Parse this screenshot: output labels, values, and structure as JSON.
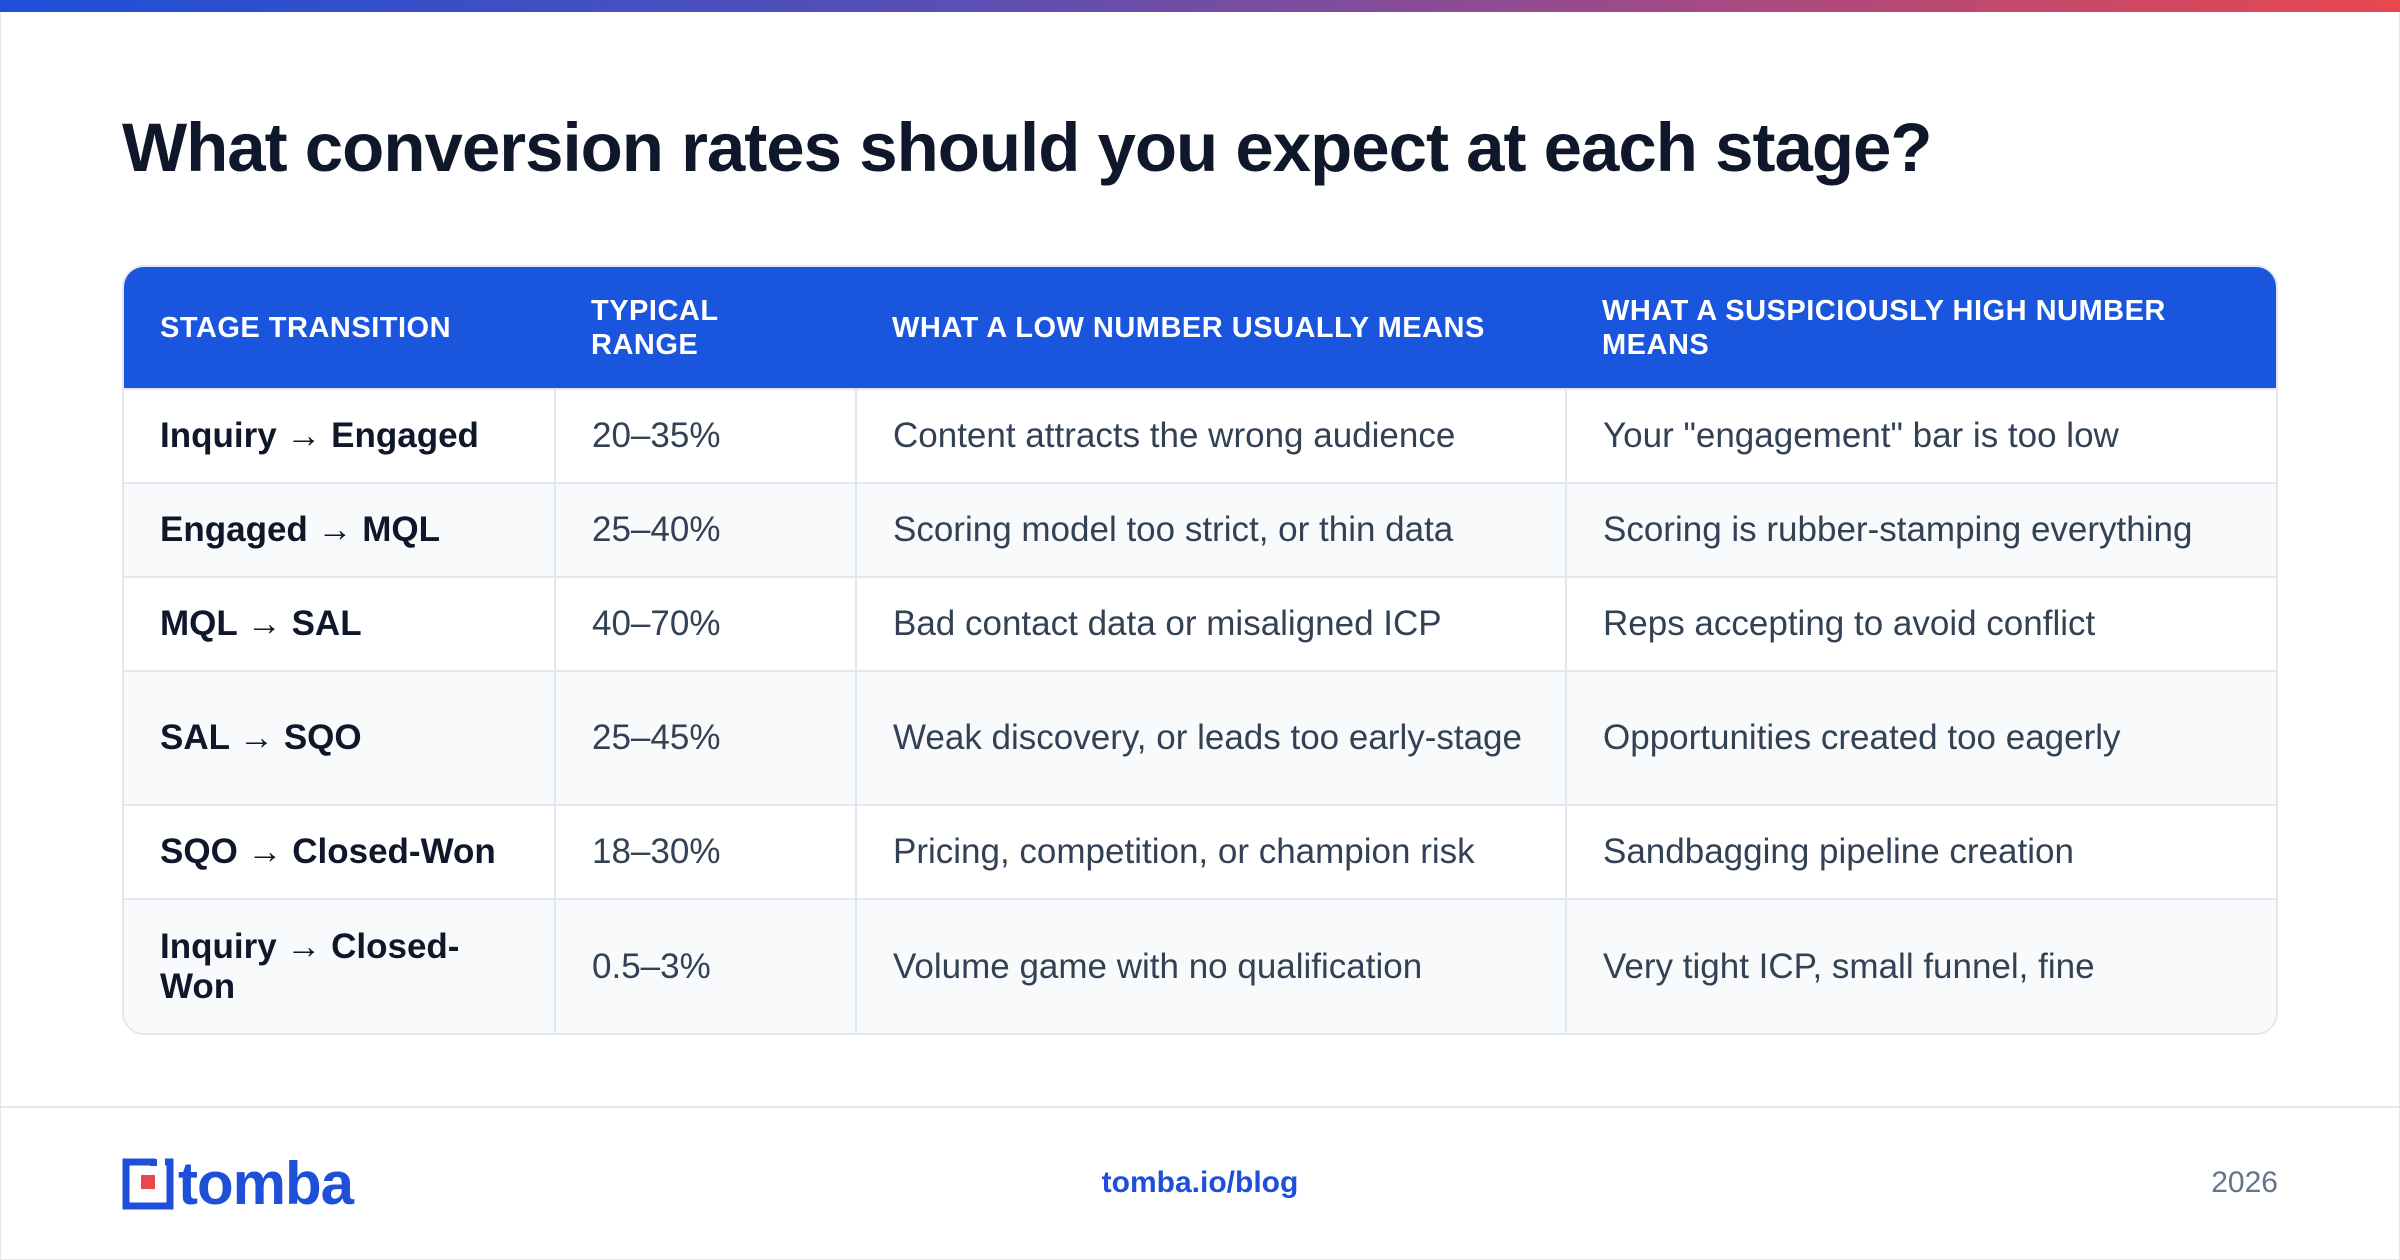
{
  "title": "What conversion rates should you expect at each stage?",
  "table": {
    "headers": [
      "STAGE TRANSITION",
      "TYPICAL RANGE",
      "WHAT A LOW NUMBER USUALLY MEANS",
      "WHAT A SUSPICIOUSLY HIGH NUMBER MEANS"
    ],
    "rows": [
      [
        "Inquiry → Engaged",
        "20–35%",
        "Content attracts the wrong audience",
        "Your \"engagement\" bar is too low"
      ],
      [
        "Engaged → MQL",
        "25–40%",
        "Scoring model too strict, or thin data",
        "Scoring is rubber-stamping everything"
      ],
      [
        "MQL → SAL",
        "40–70%",
        "Bad contact data or misaligned ICP",
        "Reps accepting to avoid conflict"
      ],
      [
        "SAL → SQO",
        "25–45%",
        "Weak discovery, or leads too early-stage",
        "Opportunities created too eagerly"
      ],
      [
        "SQO → Closed-Won",
        "18–30%",
        "Pricing, competition, or champion risk",
        "Sandbagging pipeline creation"
      ],
      [
        "Inquiry → Closed-Won",
        "0.5–3%",
        "Volume game with no qualification",
        "Very tight ICP, small funnel, fine"
      ]
    ]
  },
  "footer": {
    "logo_text": "tomba",
    "site": "tomba.io/blog",
    "year": "2026"
  },
  "colors": {
    "accent": "#1a55dd",
    "logo_red": "#e8474e",
    "header_text": "#ffffff"
  },
  "icons": {
    "logo_mark": "tomba-logo-mark-icon"
  }
}
